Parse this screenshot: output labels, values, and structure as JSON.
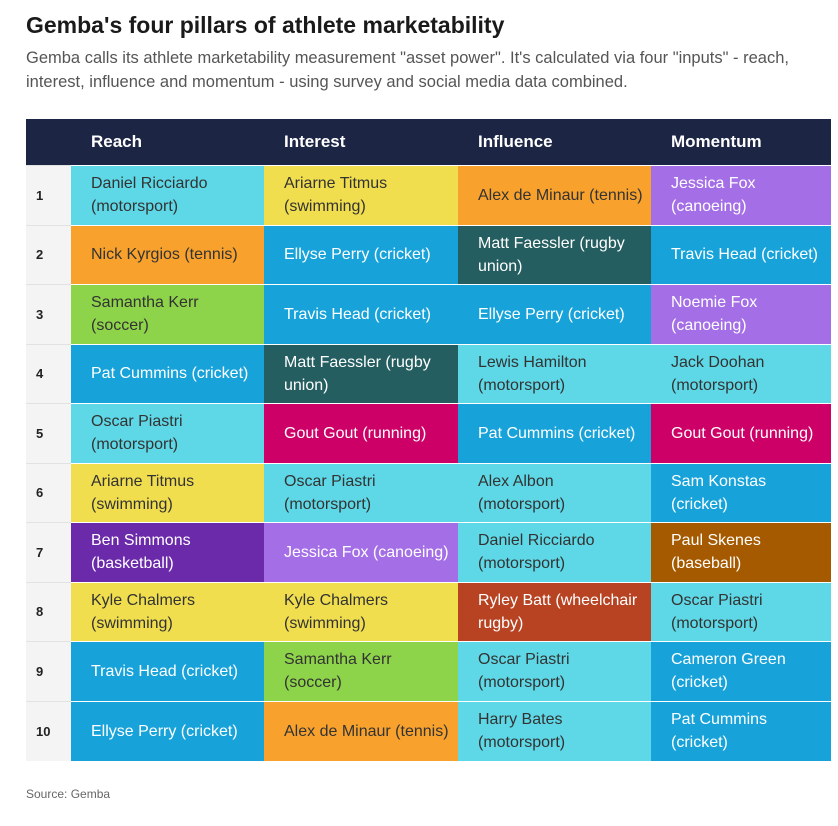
{
  "title": "Gemba's four pillars of athlete marketability",
  "subtitle": "Gemba calls its athlete marketability measurement \"asset power\". It's calculated via four \"inputs\" - reach, interest, influence and momentum - using survey and social media data combined.",
  "columns": [
    "Reach",
    "Interest",
    "Influence",
    "Momentum"
  ],
  "colors": {
    "header": "#1c2544",
    "cyan": "#5ed8e6",
    "blue": "#17a3d9",
    "yellow": "#f0de4f",
    "orange": "#f8a22d",
    "purple_light": "#a46ee6",
    "purple_dark": "#6a2aaa",
    "teal_dark": "#255e60",
    "green": "#8ed44a",
    "magenta": "#cc0066",
    "brown": "#a55a00",
    "rust": "#b74322"
  },
  "rows": [
    {
      "rank": "1",
      "cells": [
        {
          "text": "Daniel Ricciardo (motorsport)",
          "color": "#5ed8e6",
          "light": false
        },
        {
          "text": "Ariarne Titmus (swimming)",
          "color": "#f0de4f",
          "light": false
        },
        {
          "text": "Alex de Minaur (tennis)",
          "color": "#f8a22d",
          "light": false
        },
        {
          "text": "Jessica Fox (canoeing)",
          "color": "#a46ee6",
          "light": true
        }
      ]
    },
    {
      "rank": "2",
      "cells": [
        {
          "text": "Nick Kyrgios (tennis)",
          "color": "#f8a22d",
          "light": false
        },
        {
          "text": "Ellyse Perry (cricket)",
          "color": "#17a3d9",
          "light": true
        },
        {
          "text": "Matt Faessler (rugby union)",
          "color": "#255e60",
          "light": true
        },
        {
          "text": "Travis Head (cricket)",
          "color": "#17a3d9",
          "light": true
        }
      ]
    },
    {
      "rank": "3",
      "cells": [
        {
          "text": "Samantha Kerr (soccer)",
          "color": "#8ed44a",
          "light": false
        },
        {
          "text": "Travis Head (cricket)",
          "color": "#17a3d9",
          "light": true
        },
        {
          "text": "Ellyse Perry (cricket)",
          "color": "#17a3d9",
          "light": true
        },
        {
          "text": "Noemie Fox (canoeing)",
          "color": "#a46ee6",
          "light": true
        }
      ]
    },
    {
      "rank": "4",
      "cells": [
        {
          "text": "Pat Cummins (cricket)",
          "color": "#17a3d9",
          "light": true
        },
        {
          "text": "Matt Faessler (rugby union)",
          "color": "#255e60",
          "light": true
        },
        {
          "text": "Lewis Hamilton (motorsport)",
          "color": "#5ed8e6",
          "light": false
        },
        {
          "text": "Jack Doohan (motorsport)",
          "color": "#5ed8e6",
          "light": false
        }
      ]
    },
    {
      "rank": "5",
      "cells": [
        {
          "text": "Oscar Piastri (motorsport)",
          "color": "#5ed8e6",
          "light": false
        },
        {
          "text": "Gout Gout (running)",
          "color": "#cc0066",
          "light": true
        },
        {
          "text": "Pat Cummins (cricket)",
          "color": "#17a3d9",
          "light": true
        },
        {
          "text": "Gout Gout (running)",
          "color": "#cc0066",
          "light": true
        }
      ]
    },
    {
      "rank": "6",
      "cells": [
        {
          "text": "Ariarne Titmus (swimming)",
          "color": "#f0de4f",
          "light": false
        },
        {
          "text": "Oscar Piastri (motorsport)",
          "color": "#5ed8e6",
          "light": false
        },
        {
          "text": "Alex Albon (motorsport)",
          "color": "#5ed8e6",
          "light": false
        },
        {
          "text": "Sam Konstas (cricket)",
          "color": "#17a3d9",
          "light": true
        }
      ]
    },
    {
      "rank": "7",
      "cells": [
        {
          "text": "Ben Simmons (basketball)",
          "color": "#6a2aaa",
          "light": true
        },
        {
          "text": "Jessica Fox (canoeing)",
          "color": "#a46ee6",
          "light": true
        },
        {
          "text": "Daniel Ricciardo (motorsport)",
          "color": "#5ed8e6",
          "light": false
        },
        {
          "text": "Paul Skenes (baseball)",
          "color": "#a55a00",
          "light": true
        }
      ]
    },
    {
      "rank": "8",
      "cells": [
        {
          "text": "Kyle Chalmers (swimming)",
          "color": "#f0de4f",
          "light": false
        },
        {
          "text": "Kyle Chalmers (swimming)",
          "color": "#f0de4f",
          "light": false
        },
        {
          "text": "Ryley Batt (wheelchair rugby)",
          "color": "#b74322",
          "light": true
        },
        {
          "text": "Oscar Piastri (motorsport)",
          "color": "#5ed8e6",
          "light": false
        }
      ]
    },
    {
      "rank": "9",
      "cells": [
        {
          "text": "Travis Head (cricket)",
          "color": "#17a3d9",
          "light": true
        },
        {
          "text": "Samantha Kerr (soccer)",
          "color": "#8ed44a",
          "light": false
        },
        {
          "text": "Oscar Piastri (motorsport)",
          "color": "#5ed8e6",
          "light": false
        },
        {
          "text": "Cameron Green (cricket)",
          "color": "#17a3d9",
          "light": true
        }
      ]
    },
    {
      "rank": "10",
      "cells": [
        {
          "text": "Ellyse Perry (cricket)",
          "color": "#17a3d9",
          "light": true
        },
        {
          "text": "Alex de Minaur (tennis)",
          "color": "#f8a22d",
          "light": false
        },
        {
          "text": "Harry Bates (motorsport)",
          "color": "#5ed8e6",
          "light": false
        },
        {
          "text": "Pat Cummins (cricket)",
          "color": "#17a3d9",
          "light": true
        }
      ]
    }
  ],
  "source": "Source: Gemba"
}
